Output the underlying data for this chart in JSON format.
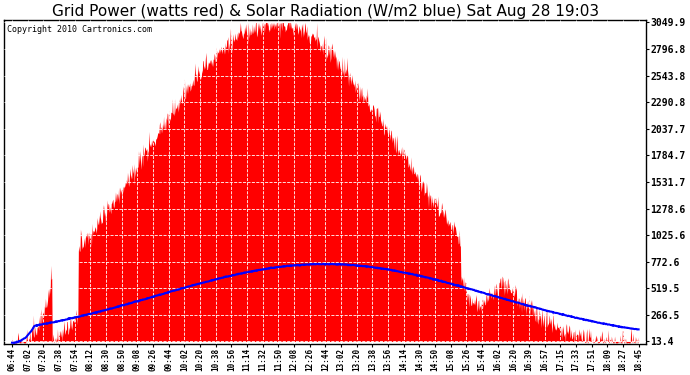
{
  "title": "Grid Power (watts red) & Solar Radiation (W/m2 blue) Sat Aug 28 19:03",
  "copyright_text": "Copyright 2010 Cartronics.com",
  "background_color": "#ffffff",
  "plot_bg_color": "#ffffff",
  "grid_color": "#aaaaaa",
  "ytick_labels": [
    "13.4",
    "266.5",
    "519.5",
    "772.6",
    "1025.6",
    "1278.6",
    "1531.7",
    "1784.7",
    "2037.7",
    "2290.8",
    "2543.8",
    "2796.8",
    "3049.9"
  ],
  "ytick_values": [
    13.4,
    266.5,
    519.5,
    772.6,
    1025.6,
    1278.6,
    1531.7,
    1784.7,
    2037.7,
    2290.8,
    2543.8,
    2796.8,
    3049.9
  ],
  "ymax": 3049.9,
  "ymin": 13.4,
  "red_color": "#ff0000",
  "blue_color": "#0000ff",
  "title_fontsize": 11,
  "x_tick_labels": [
    "06:44",
    "07:02",
    "07:20",
    "07:38",
    "07:54",
    "08:12",
    "08:30",
    "08:50",
    "09:08",
    "09:26",
    "09:44",
    "10:02",
    "10:20",
    "10:38",
    "10:56",
    "11:14",
    "11:32",
    "11:50",
    "12:08",
    "12:26",
    "12:44",
    "13:02",
    "13:20",
    "13:38",
    "13:56",
    "14:14",
    "14:30",
    "14:50",
    "15:08",
    "15:26",
    "15:44",
    "16:02",
    "16:20",
    "16:39",
    "16:57",
    "17:15",
    "17:33",
    "17:51",
    "18:09",
    "18:27",
    "18:45"
  ],
  "solar_rad_peak": 750,
  "grid_power_peak": 3049.9,
  "fig_width": 6.9,
  "fig_height": 3.75,
  "fig_dpi": 100
}
